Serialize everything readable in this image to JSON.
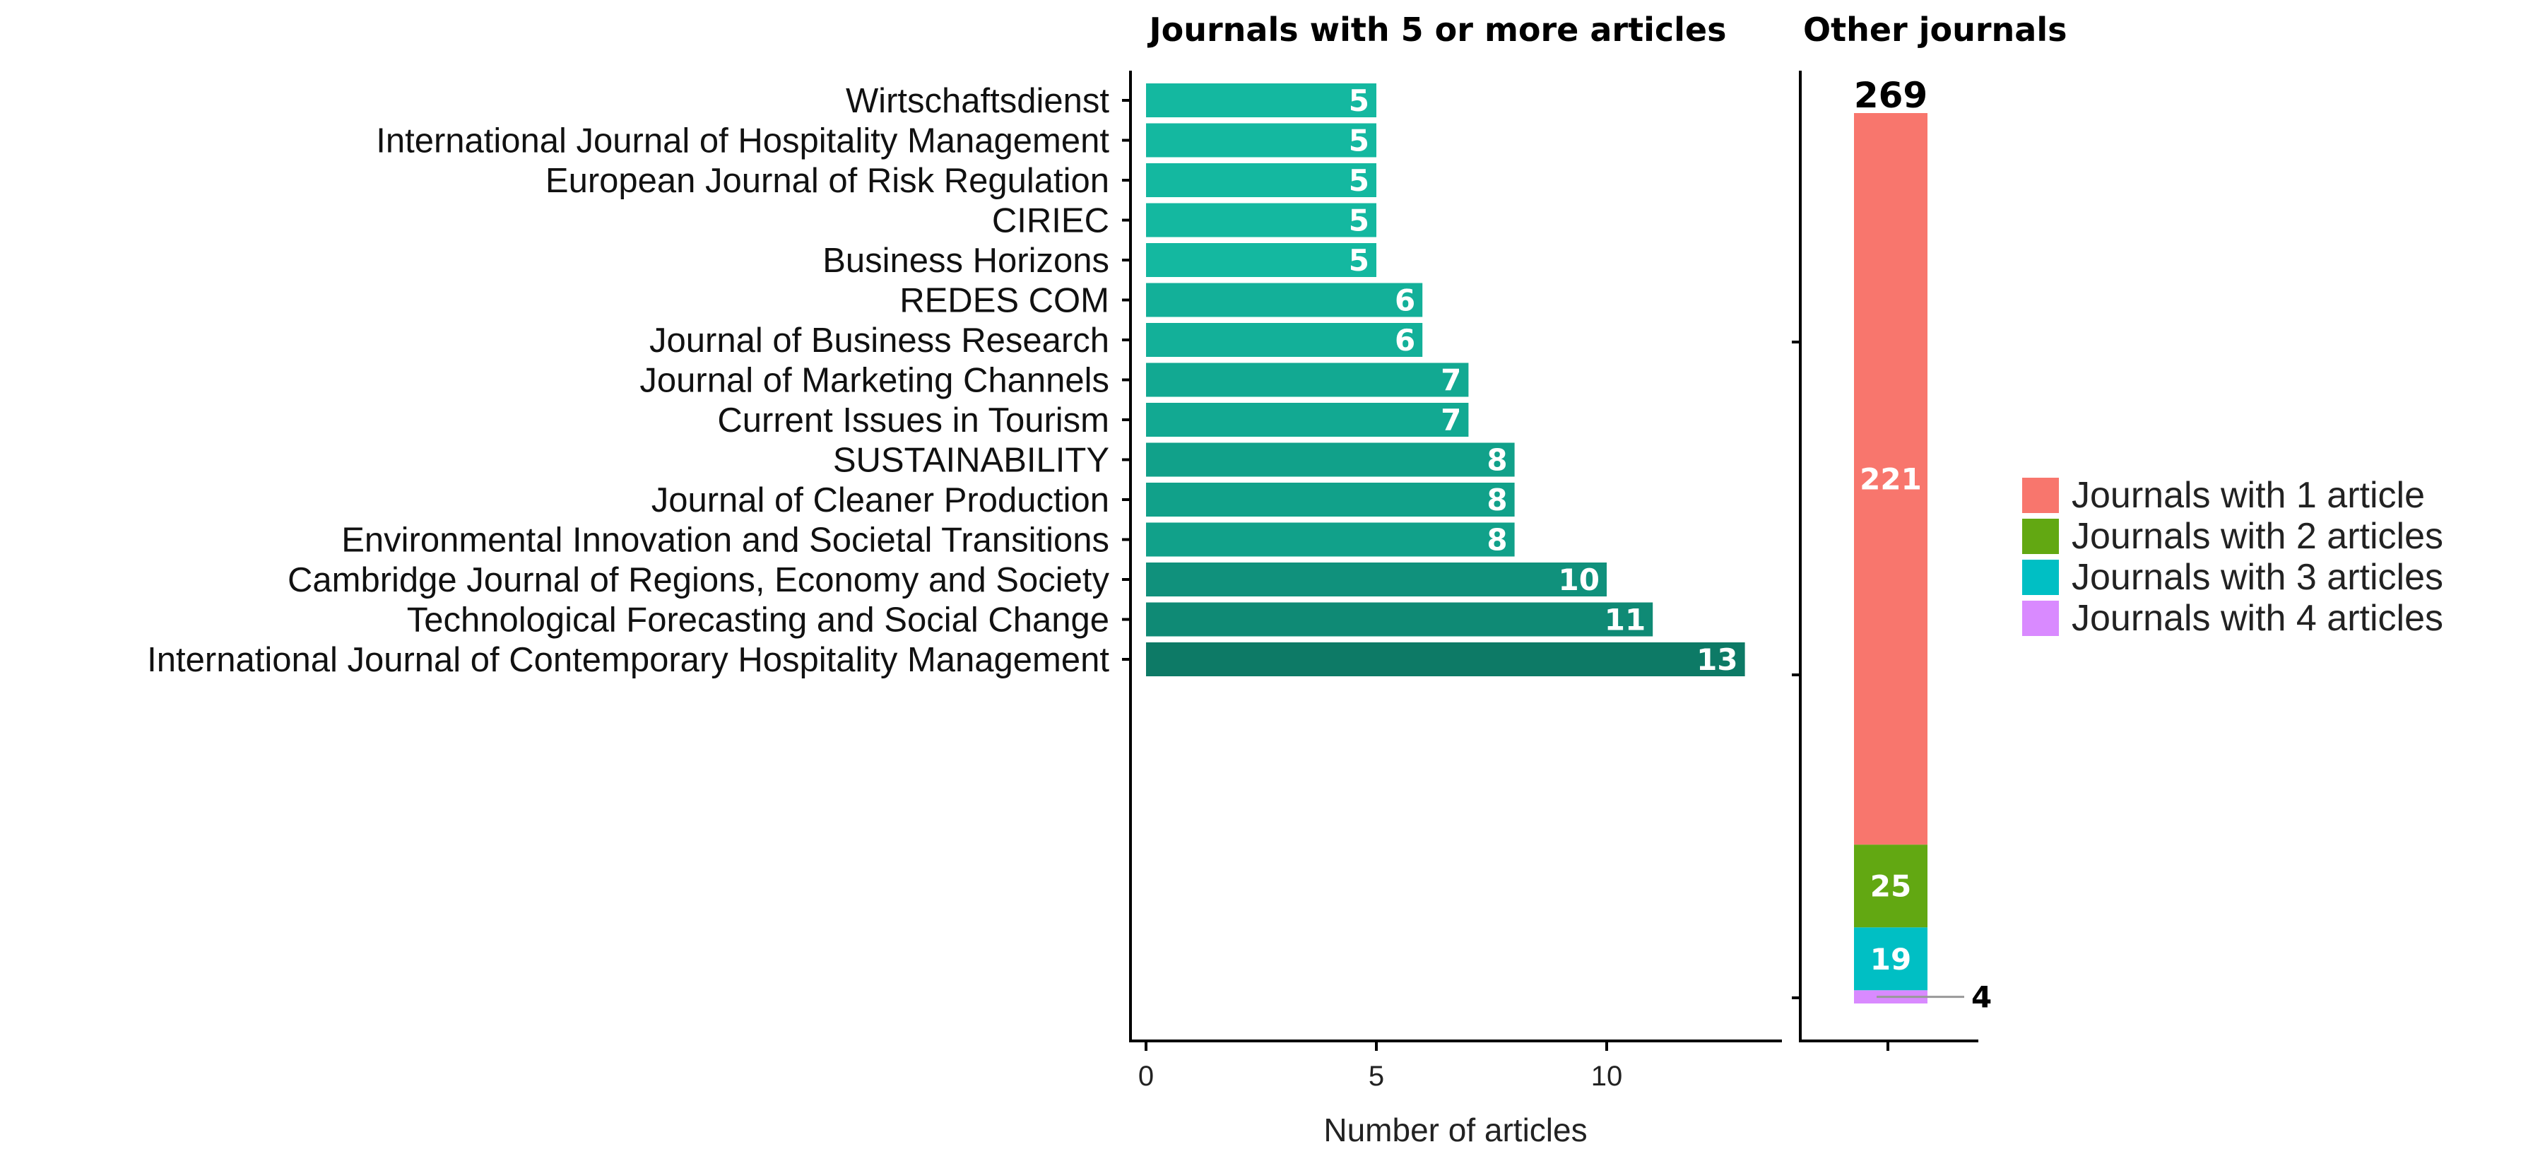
{
  "chart_data": [
    {
      "type": "bar",
      "orientation": "horizontal",
      "title": "Journals with 5 or more articles",
      "xlabel": "Number of articles",
      "ylabel": "",
      "xlim": [
        0,
        13.5
      ],
      "xticks": [
        0,
        5,
        10
      ],
      "xtick_labels": [
        "0",
        "5",
        "10"
      ],
      "categories": [
        "Wirtschaftsdienst",
        "International Journal of Hospitality Management",
        "European Journal of Risk Regulation",
        "CIRIEC",
        "Business Horizons",
        "REDES COM",
        "Journal of Business Research",
        "Journal of Marketing Channels",
        "Current Issues in Tourism",
        "SUSTAINABILITY",
        "Journal of Cleaner Production",
        "Environmental Innovation and Societal Transitions",
        "Cambridge Journal of Regions, Economy and Society",
        "Technological Forecasting and Social Change",
        "International Journal of Contemporary Hospitality Management"
      ],
      "values": [
        5,
        5,
        5,
        5,
        5,
        6,
        6,
        7,
        7,
        8,
        8,
        8,
        10,
        11,
        13
      ],
      "value_labels": [
        "5",
        "5",
        "5",
        "5",
        "5",
        "6",
        "6",
        "7",
        "7",
        "8",
        "8",
        "8",
        "10",
        "11",
        "13"
      ],
      "color_light": "#14b8a0",
      "color_dark": "#0d7a66",
      "grid": false
    },
    {
      "type": "bar",
      "stacked": true,
      "title": "Other journals",
      "total": 269,
      "total_label": "269",
      "series": [
        {
          "name": "Journals with 4 articles",
          "value": 4,
          "label": "4",
          "color": "#d98aff"
        },
        {
          "name": "Journals with 3 articles",
          "value": 19,
          "label": "19",
          "color": "#00bfc4"
        },
        {
          "name": "Journals with 2 articles",
          "value": 25,
          "label": "25",
          "color": "#62a812"
        },
        {
          "name": "Journals with 1 article",
          "value": 221,
          "label": "221",
          "color": "#f8766d"
        }
      ],
      "legend": [
        {
          "label": "Journals with 1 article",
          "color": "#f8766d"
        },
        {
          "label": "Journals with 2 articles",
          "color": "#62a812"
        },
        {
          "label": "Journals with 3 articles",
          "color": "#00bfc4"
        },
        {
          "label": "Journals with 4 articles",
          "color": "#d98aff"
        }
      ],
      "legend_position": "right",
      "grid": false
    }
  ]
}
